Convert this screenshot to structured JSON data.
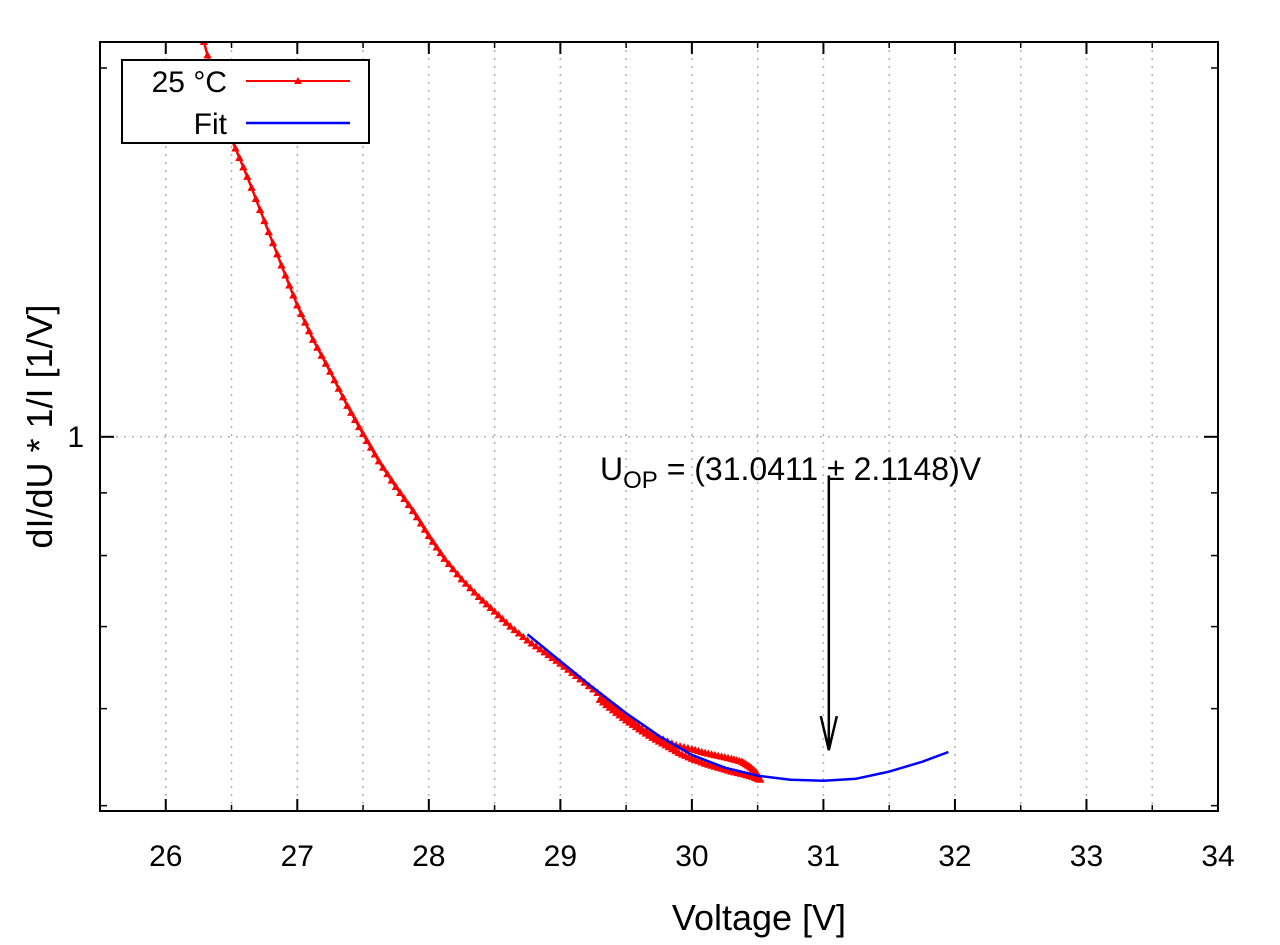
{
  "chart_data": {
    "type": "line",
    "xlabel": "Voltage [V]",
    "ylabel": "dI/dU * 1/I [1/V]",
    "xlim": [
      25.5,
      34
    ],
    "ylim": [
      0.495,
      2.1
    ],
    "yscale": "log",
    "grid": true,
    "legend_position": "top-left",
    "x_ticks": [
      "26",
      "27",
      "28",
      "29",
      "30",
      "31",
      "32",
      "33",
      "34"
    ],
    "y_ticks": [
      "1"
    ],
    "series": [
      {
        "name": "25 °C",
        "color": "#ff0000",
        "marker": "triangle",
        "x": [
          26.29,
          26.4,
          26.5,
          26.62,
          26.75,
          26.88,
          27.0,
          27.12,
          27.25,
          27.38,
          27.5,
          27.62,
          27.75,
          27.88,
          28.0,
          28.12,
          28.25,
          28.38,
          28.5,
          28.62,
          28.75,
          28.88,
          29.0,
          29.12,
          29.25,
          29.38,
          29.5,
          29.62,
          29.75,
          29.88,
          30.0,
          30.1,
          30.2,
          30.3,
          30.38,
          30.44,
          30.49,
          30.52,
          30.48,
          30.4,
          30.3,
          30.2,
          30.1,
          30.0,
          29.9,
          29.8,
          29.7,
          29.6,
          29.5,
          29.4,
          29.3
        ],
        "y": [
          2.1,
          1.9,
          1.75,
          1.63,
          1.5,
          1.38,
          1.28,
          1.2,
          1.13,
          1.06,
          1.005,
          0.955,
          0.91,
          0.87,
          0.83,
          0.795,
          0.765,
          0.74,
          0.72,
          0.7,
          0.682,
          0.667,
          0.653,
          0.638,
          0.622,
          0.606,
          0.592,
          0.578,
          0.568,
          0.56,
          0.556,
          0.552,
          0.549,
          0.546,
          0.543,
          0.538,
          0.532,
          0.525,
          0.527,
          0.53,
          0.533,
          0.537,
          0.541,
          0.546,
          0.552,
          0.56,
          0.568,
          0.577,
          0.587,
          0.598,
          0.61
        ]
      },
      {
        "name": "Fit",
        "color": "#0000ff",
        "marker": "none",
        "x": [
          28.75,
          29.0,
          29.25,
          29.5,
          29.75,
          30.0,
          30.25,
          30.5,
          30.75,
          31.0,
          31.25,
          31.5,
          31.75,
          31.95
        ],
        "y": [
          0.69,
          0.656,
          0.624,
          0.595,
          0.57,
          0.55,
          0.537,
          0.529,
          0.525,
          0.524,
          0.526,
          0.533,
          0.543,
          0.553
        ]
      }
    ],
    "annotation": {
      "text_main": "U",
      "text_sub": "OP",
      "text_rest": " = (31.0411 ± 2.1148)V",
      "arrow_x": 31.0411,
      "arrow_y_from": 0.93,
      "arrow_y_to": 0.555
    }
  }
}
